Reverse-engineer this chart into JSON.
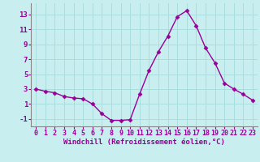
{
  "x": [
    0,
    1,
    2,
    3,
    4,
    5,
    6,
    7,
    8,
    9,
    10,
    11,
    12,
    13,
    14,
    15,
    16,
    17,
    18,
    19,
    20,
    21,
    22,
    23
  ],
  "y": [
    3,
    2.7,
    2.5,
    2.0,
    1.8,
    1.7,
    1.0,
    -0.3,
    -1.2,
    -1.2,
    -1.1,
    2.3,
    5.5,
    8.0,
    10.1,
    12.7,
    13.5,
    11.5,
    8.5,
    6.5,
    3.8,
    3.0,
    2.3,
    1.5
  ],
  "line_color": "#990099",
  "marker": "D",
  "markersize": 2.5,
  "linewidth": 1.0,
  "background_color": "#c8eef0",
  "grid_color": "#aadddd",
  "xlabel": "Windchill (Refroidissement éolien,°C)",
  "ylabel": "",
  "ylim": [
    -2,
    14.5
  ],
  "xlim": [
    -0.5,
    23.5
  ],
  "yticks": [
    -1,
    1,
    3,
    5,
    7,
    9,
    11,
    13
  ],
  "xticks": [
    0,
    1,
    2,
    3,
    4,
    5,
    6,
    7,
    8,
    9,
    10,
    11,
    12,
    13,
    14,
    15,
    16,
    17,
    18,
    19,
    20,
    21,
    22,
    23
  ],
  "tick_label_color": "#990099",
  "xlabel_color": "#990099",
  "xlabel_fontsize": 6.5,
  "tick_fontsize": 6,
  "ytick_fontsize": 6.5,
  "spine_color": "#888888"
}
